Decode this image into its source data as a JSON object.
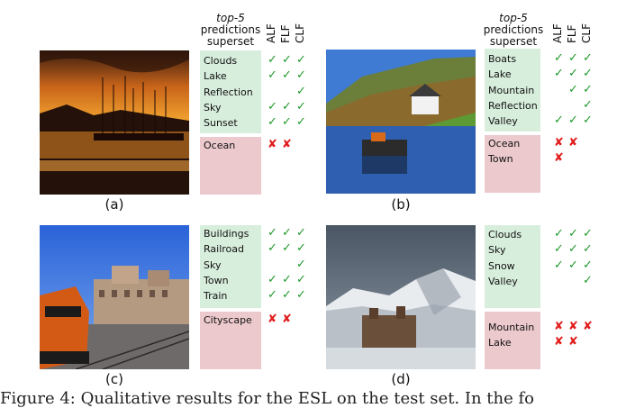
{
  "header": {
    "top5": "top-5",
    "line2": "predictions",
    "line3": "superset"
  },
  "columns": [
    "ALF",
    "FLF",
    "CLF"
  ],
  "panels": [
    {
      "caption": "(a)",
      "correct": [
        {
          "label": "Clouds",
          "marks": [
            true,
            true,
            true
          ]
        },
        {
          "label": "Lake",
          "marks": [
            true,
            true,
            true
          ]
        },
        {
          "label": "Reflection",
          "marks": [
            false,
            false,
            true
          ]
        },
        {
          "label": "Sky",
          "marks": [
            true,
            true,
            true
          ]
        },
        {
          "label": "Sunset",
          "marks": [
            true,
            true,
            true
          ]
        }
      ],
      "wrong": [
        {
          "label": "Ocean",
          "marks": [
            true,
            true,
            false
          ]
        }
      ]
    },
    {
      "caption": "(b)",
      "correct": [
        {
          "label": "Boats",
          "marks": [
            true,
            true,
            true
          ]
        },
        {
          "label": "Lake",
          "marks": [
            true,
            true,
            true
          ]
        },
        {
          "label": "Mountain",
          "marks": [
            false,
            true,
            true
          ]
        },
        {
          "label": "Reflection",
          "marks": [
            false,
            false,
            true
          ]
        },
        {
          "label": "Valley",
          "marks": [
            true,
            true,
            true
          ]
        }
      ],
      "wrong": [
        {
          "label": "Ocean",
          "marks": [
            true,
            true,
            false
          ]
        },
        {
          "label": "Town",
          "marks": [
            true,
            false,
            false
          ]
        }
      ]
    },
    {
      "caption": "(c)",
      "correct": [
        {
          "label": "Buildings",
          "marks": [
            true,
            true,
            true
          ]
        },
        {
          "label": "Railroad",
          "marks": [
            true,
            true,
            true
          ]
        },
        {
          "label": "Sky",
          "marks": [
            false,
            false,
            true
          ]
        },
        {
          "label": "Town",
          "marks": [
            true,
            true,
            true
          ]
        },
        {
          "label": "Train",
          "marks": [
            true,
            true,
            true
          ]
        }
      ],
      "wrong": [
        {
          "label": "Cityscape",
          "marks": [
            true,
            true,
            false
          ]
        }
      ]
    },
    {
      "caption": "(d)",
      "correct": [
        {
          "label": "Clouds",
          "marks": [
            true,
            true,
            true
          ]
        },
        {
          "label": "Sky",
          "marks": [
            true,
            true,
            true
          ]
        },
        {
          "label": "Snow",
          "marks": [
            true,
            true,
            true
          ]
        },
        {
          "label": "Valley",
          "marks": [
            false,
            false,
            true
          ]
        }
      ],
      "wrong": [
        {
          "label": "Mountain",
          "marks": [
            true,
            true,
            true
          ]
        },
        {
          "label": "Lake",
          "marks": [
            true,
            true,
            false
          ]
        }
      ]
    }
  ],
  "symbols": {
    "correct": "✓",
    "wrong": "✘"
  },
  "colors": {
    "correct_bg": "#d8eedd",
    "wrong_bg": "#ecc9cd",
    "check": "#1f9a2a",
    "cross": "#e21b1b"
  },
  "figure_caption": "Figure 4: Qualitative results for the ESL on the test set. In the fo"
}
